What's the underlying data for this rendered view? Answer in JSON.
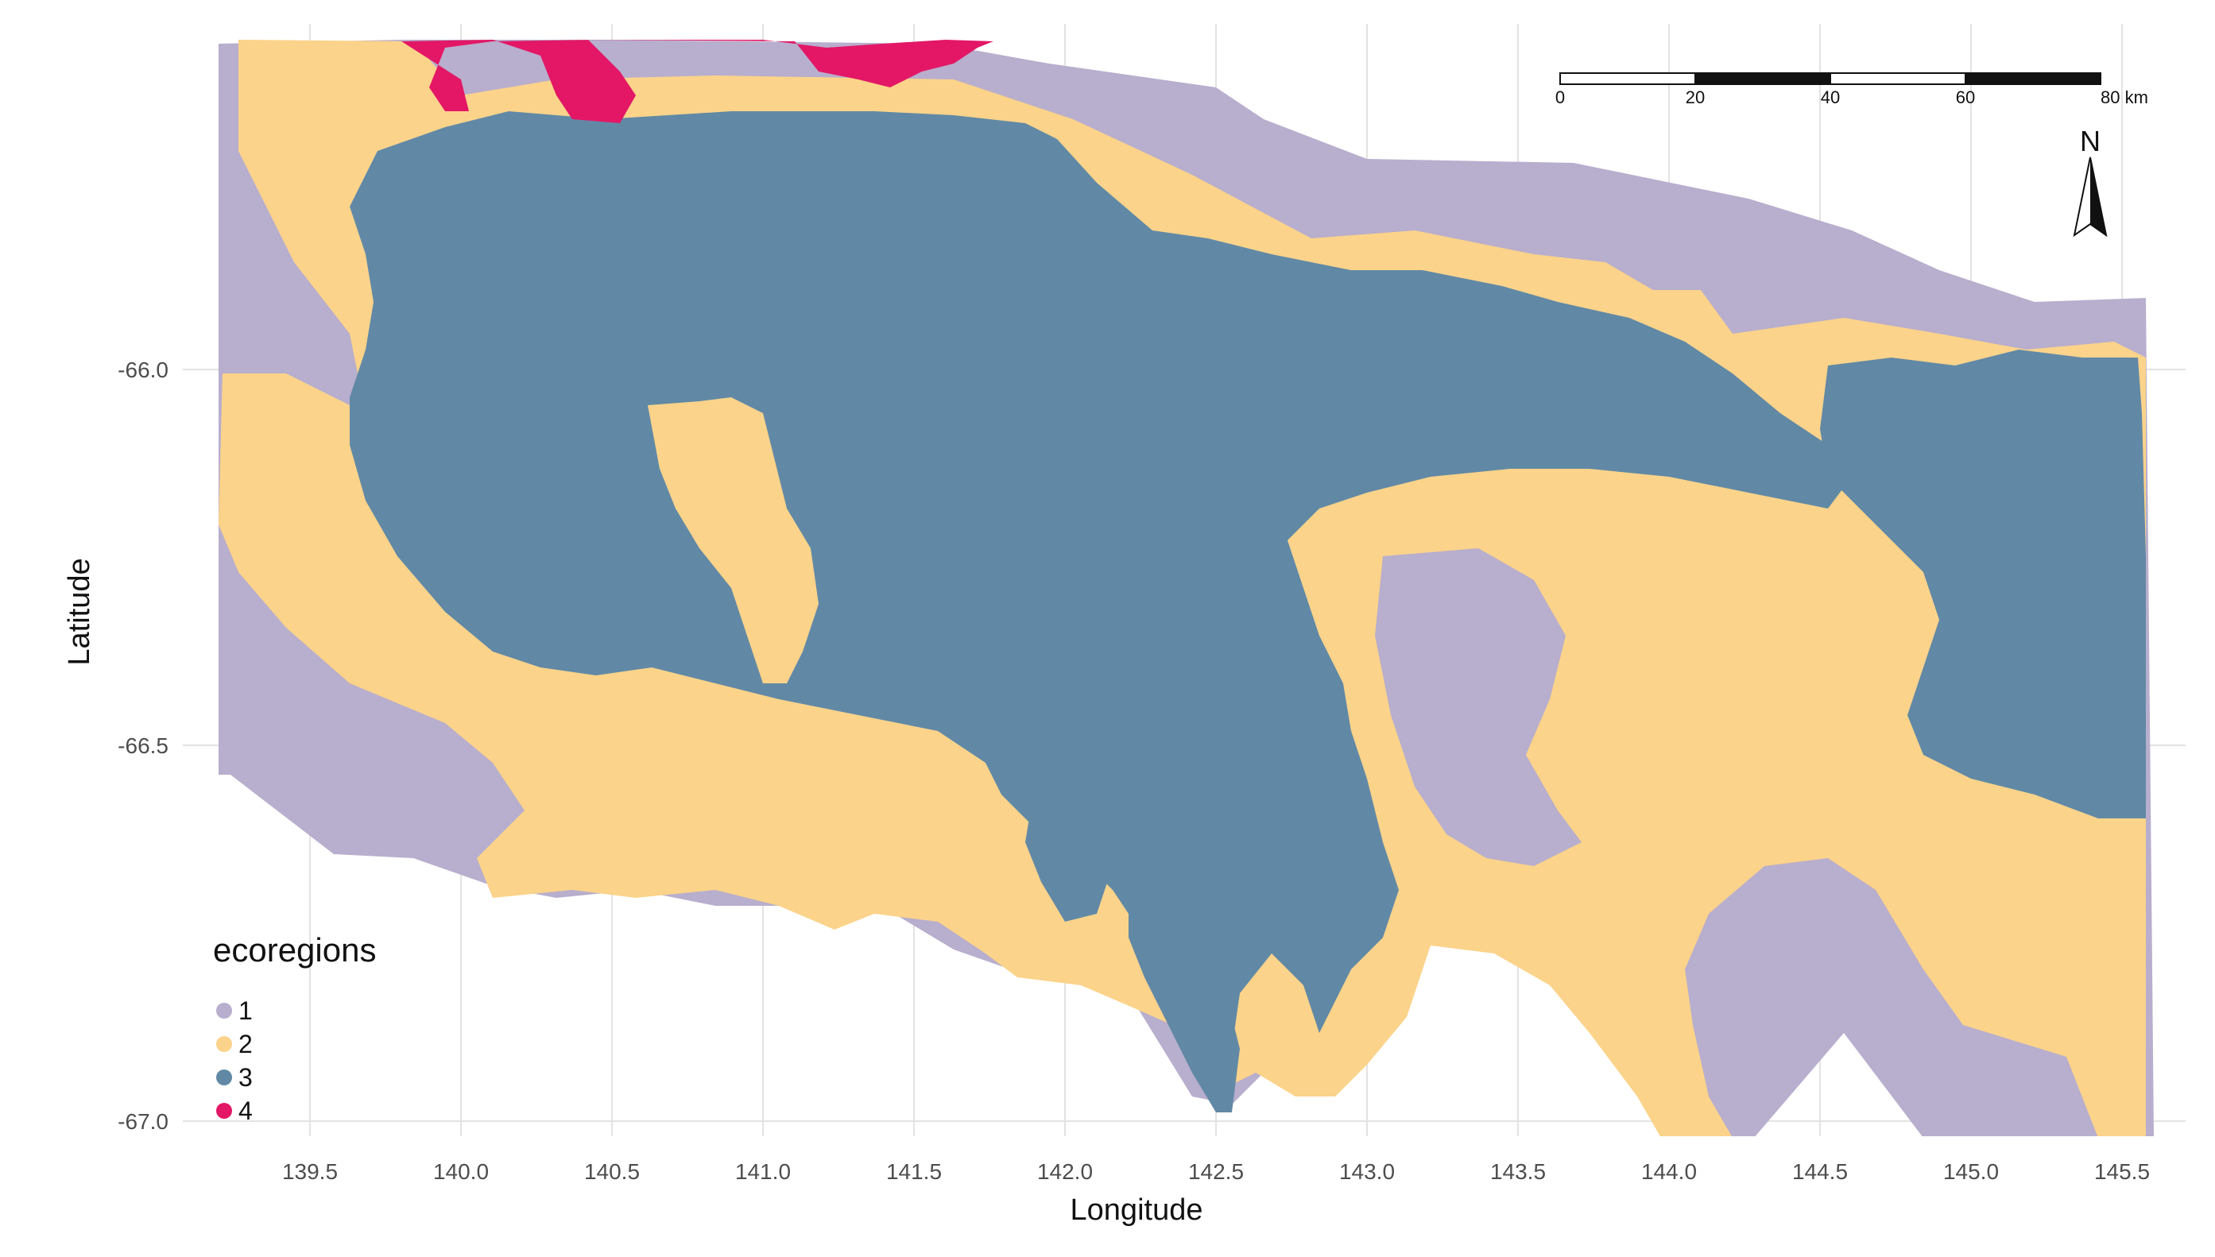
{
  "chart_data": {
    "type": "map",
    "xlabel": "Longitude",
    "ylabel": "Latitude",
    "xlim": [
      139.2,
      145.6
    ],
    "ylim": [
      -67.0,
      -65.58
    ],
    "x_ticks": [
      "139.5",
      "140.0",
      "140.5",
      "141.0",
      "141.5",
      "142.0",
      "142.5",
      "143.0",
      "143.5",
      "144.0",
      "144.5",
      "145.0",
      "145.5"
    ],
    "y_ticks": [
      "-66.0",
      "-66.5",
      "-67.0"
    ],
    "grid": true,
    "legend": {
      "title": "ecoregions",
      "placement": "bottom-left",
      "entries": [
        {
          "label": "1",
          "color": "#b8aecd"
        },
        {
          "label": "2",
          "color": "#fbd38a"
        },
        {
          "label": "3",
          "color": "#6189a6"
        },
        {
          "label": "4",
          "color": "#e31766"
        }
      ]
    },
    "scale_bar": {
      "unit": "km",
      "labels": [
        "0",
        "20",
        "40",
        "60",
        "80 km"
      ]
    },
    "north_arrow": {
      "label": "N"
    }
  }
}
